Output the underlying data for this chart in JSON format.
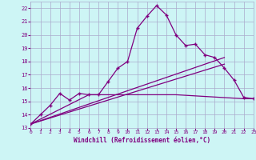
{
  "x": [
    0,
    1,
    2,
    3,
    4,
    5,
    6,
    7,
    8,
    9,
    10,
    11,
    12,
    13,
    14,
    15,
    16,
    17,
    18,
    19,
    20,
    21,
    22,
    23
  ],
  "line1": [
    13.3,
    14.0,
    14.7,
    15.6,
    15.1,
    15.6,
    15.5,
    15.5,
    16.5,
    17.5,
    18.0,
    20.5,
    21.4,
    22.2,
    21.5,
    20.0,
    19.2,
    19.3,
    18.5,
    18.3,
    17.5,
    16.6,
    15.3,
    15.2
  ],
  "line2_x": [
    0,
    6,
    7,
    8,
    9,
    10,
    14,
    15,
    22,
    23
  ],
  "line2_y": [
    13.3,
    15.5,
    15.5,
    15.5,
    15.5,
    15.5,
    15.5,
    15.5,
    15.2,
    15.2
  ],
  "line3_x": [
    0,
    20
  ],
  "line3_y": [
    13.3,
    18.3
  ],
  "line4_x": [
    0,
    20
  ],
  "line4_y": [
    13.3,
    17.8
  ],
  "line_color": "#800080",
  "bg_color": "#cdf5f5",
  "grid_color": "#aaaacc",
  "xlabel": "Windchill (Refroidissement éolien,°C)",
  "ylim": [
    13,
    22.5
  ],
  "xlim": [
    0,
    23
  ],
  "yticks": [
    13,
    14,
    15,
    16,
    17,
    18,
    19,
    20,
    21,
    22
  ],
  "xticks": [
    0,
    1,
    2,
    3,
    4,
    5,
    6,
    7,
    8,
    9,
    10,
    11,
    12,
    13,
    14,
    15,
    16,
    17,
    18,
    19,
    20,
    21,
    22,
    23
  ]
}
